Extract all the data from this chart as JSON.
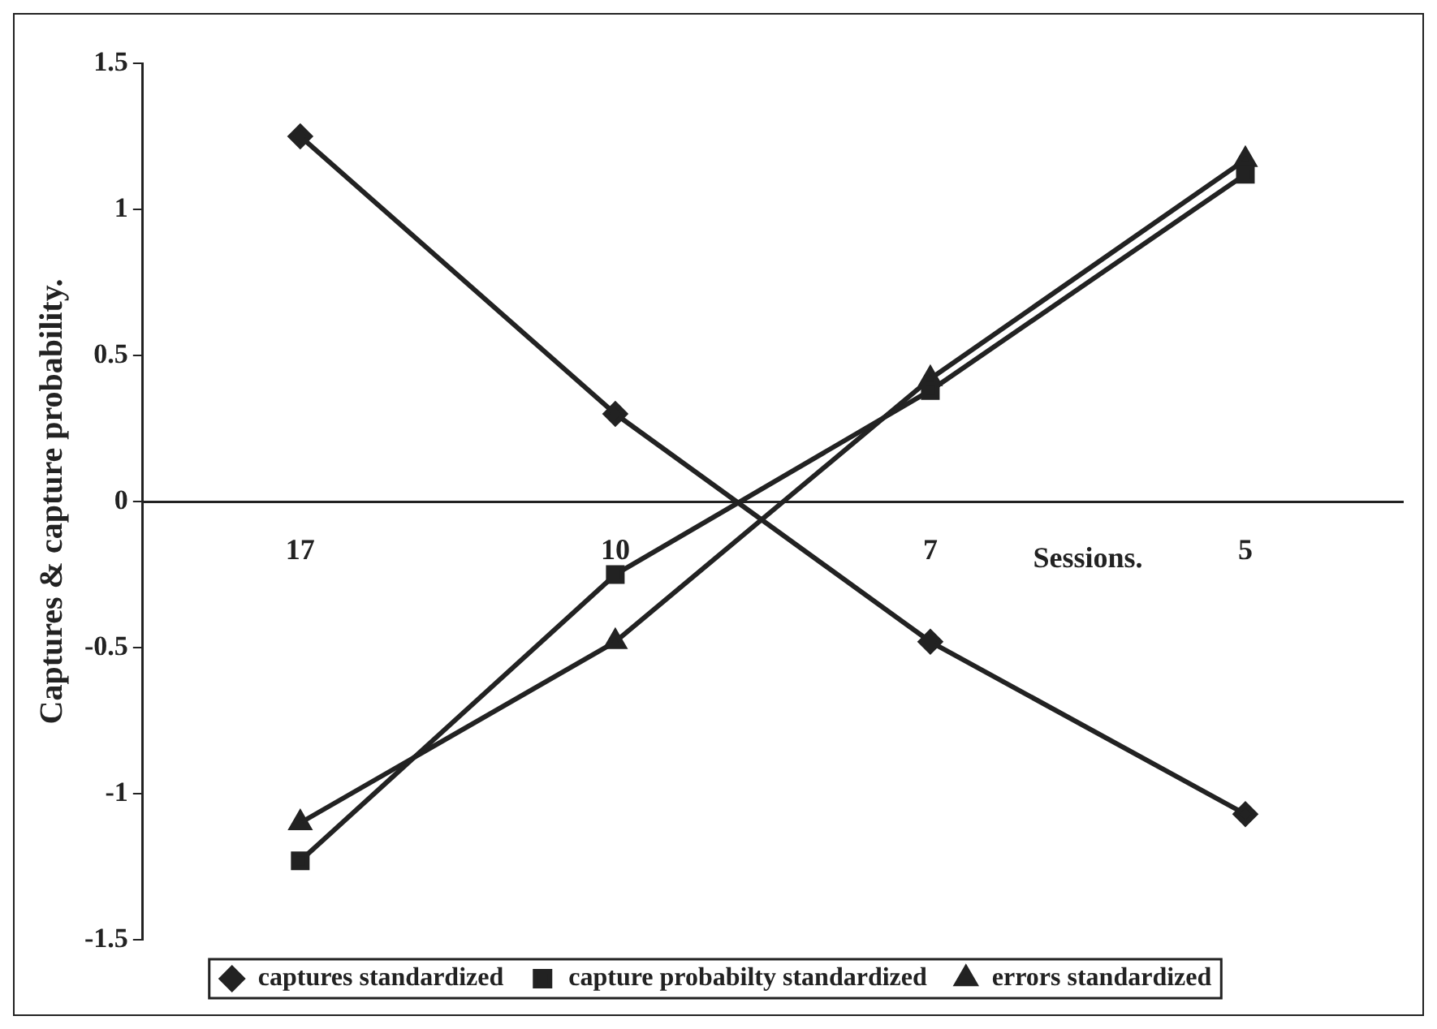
{
  "chart_data": {
    "type": "line",
    "ylabel": "Captures & capture probability.",
    "xlabel": "Sessions.",
    "categories": [
      "17",
      "10",
      "7",
      "5"
    ],
    "series": [
      {
        "name": "captures standardized",
        "color": "#222222",
        "marker": "diamond",
        "values": [
          1.25,
          0.3,
          -0.48,
          -1.07
        ]
      },
      {
        "name": "capture probabilty standardized",
        "color": "#222222",
        "marker": "square",
        "values": [
          -1.23,
          -0.25,
          0.38,
          1.12
        ]
      },
      {
        "name": "errors standardized",
        "color": "#222222",
        "marker": "triangle",
        "values": [
          -1.1,
          -0.48,
          0.42,
          1.17
        ]
      }
    ],
    "ylim": [
      -1.5,
      1.5
    ],
    "yticks": [
      -1.5,
      -1,
      -0.5,
      0,
      0.5,
      1,
      1.5
    ],
    "grid": false,
    "legend": "bottom",
    "line_style": "solid"
  }
}
